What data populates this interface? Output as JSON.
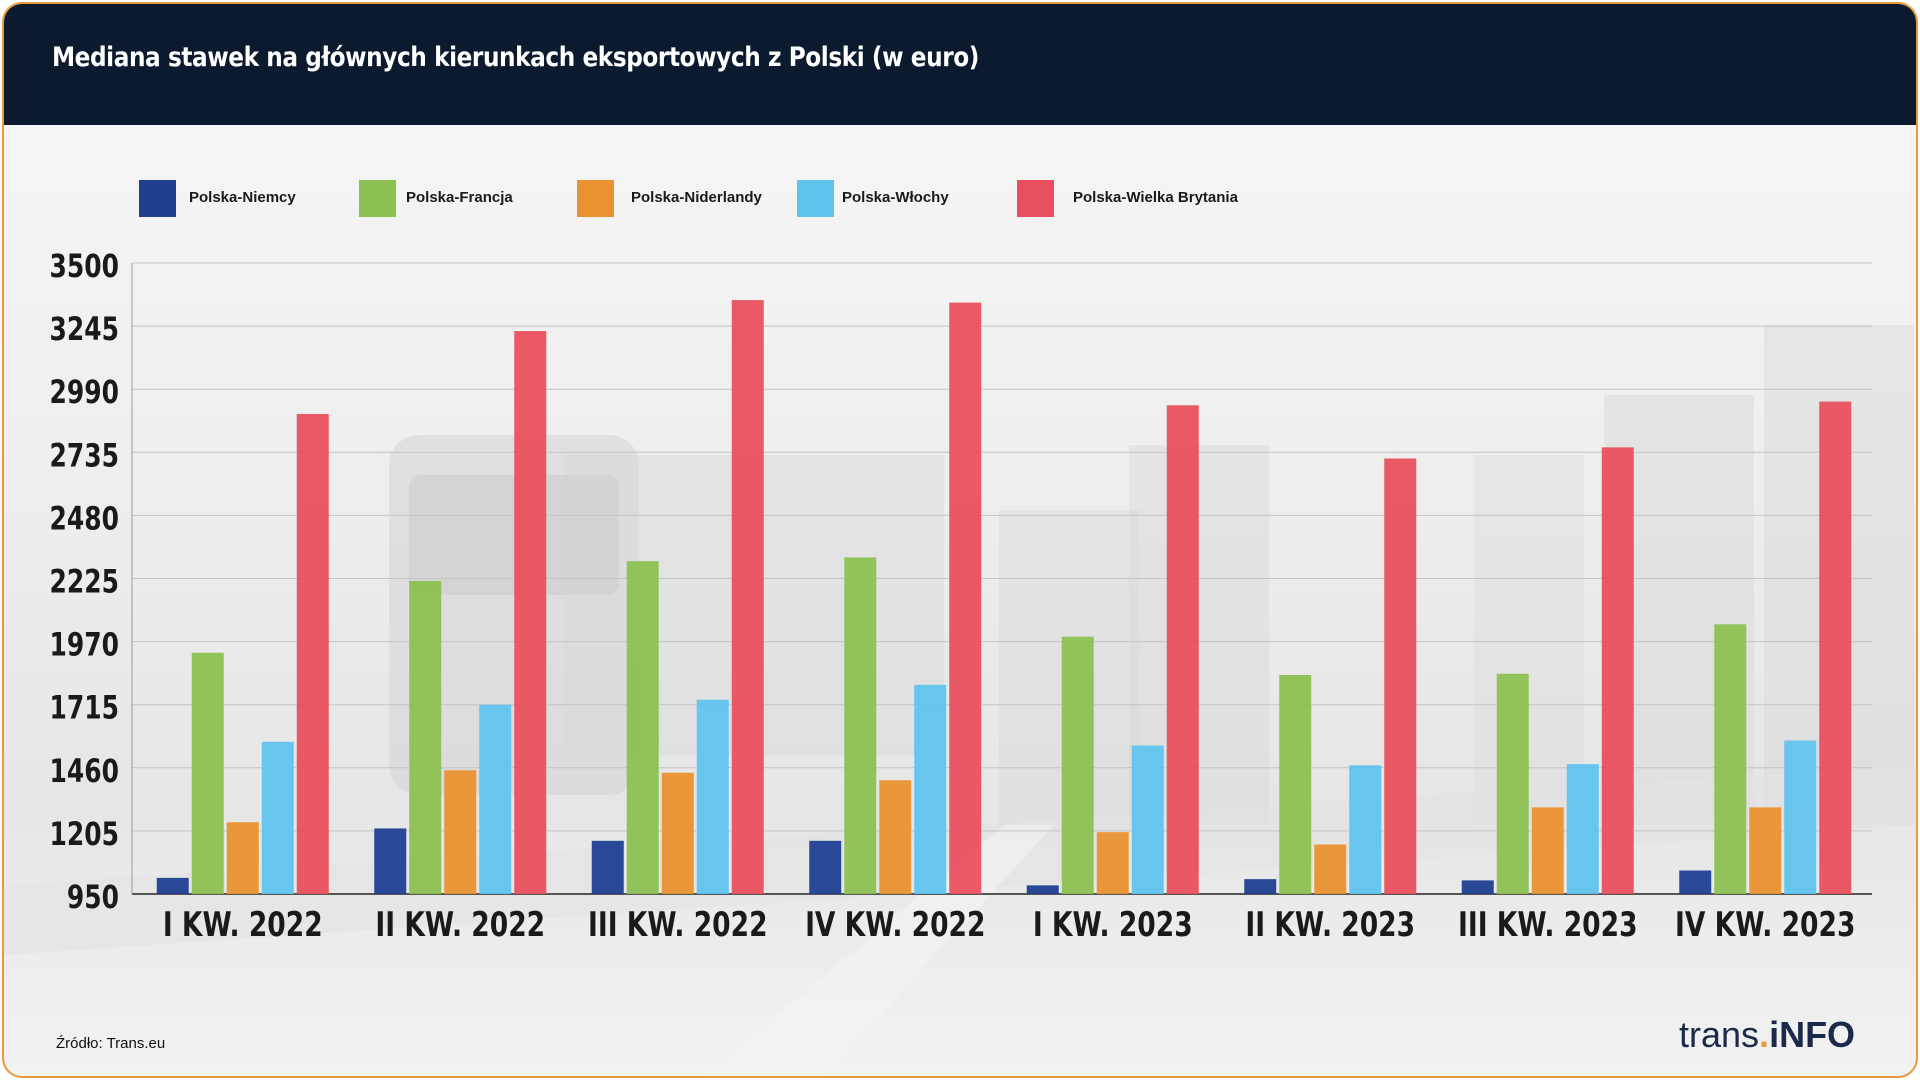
{
  "title": "Mediana stawek na głównych kierunkach eksportowych z Polski (w euro)",
  "source": "Źródło: Trans.eu",
  "brand": {
    "part1": "trans",
    "dot": ".",
    "part2": "iNFO"
  },
  "colors": {
    "header_bg": "#0b1a2e",
    "border": "#e89a3c",
    "series": [
      "#1f3f91",
      "#8cc152",
      "#ea9132",
      "#60c3ee",
      "#e8505e"
    ]
  },
  "chart_data": {
    "type": "bar",
    "title": "Mediana stawek na głównych kierunkach eksportowych z Polski (w euro)",
    "xlabel": "",
    "ylabel": "",
    "ylim": [
      950,
      3500
    ],
    "yticks": [
      950,
      1205,
      1460,
      1715,
      1970,
      2225,
      2480,
      2735,
      2990,
      3245,
      3500
    ],
    "grid": true,
    "legend_position": "top-left",
    "categories": [
      "I KW. 2022",
      "II KW. 2022",
      "III KW. 2022",
      "IV KW. 2022",
      "I KW. 2023",
      "II KW. 2023",
      "III KW. 2023",
      "IV KW. 2023"
    ],
    "series": [
      {
        "name": "Polska-Niemcy",
        "values": [
          1015,
          1215,
          1165,
          1165,
          985,
          1010,
          1005,
          1045
        ]
      },
      {
        "name": "Polska-Francja",
        "values": [
          1925,
          2215,
          2295,
          2310,
          1990,
          1835,
          1840,
          2040
        ]
      },
      {
        "name": "Polska-Niderlandy",
        "values": [
          1240,
          1450,
          1440,
          1410,
          1200,
          1150,
          1300,
          1300
        ]
      },
      {
        "name": "Polska-Włochy",
        "values": [
          1565,
          1715,
          1735,
          1795,
          1550,
          1470,
          1475,
          1570
        ]
      },
      {
        "name": "Polska-Wielka Brytania",
        "values": [
          2890,
          3225,
          3350,
          3340,
          2925,
          2710,
          2755,
          2940
        ]
      }
    ]
  }
}
